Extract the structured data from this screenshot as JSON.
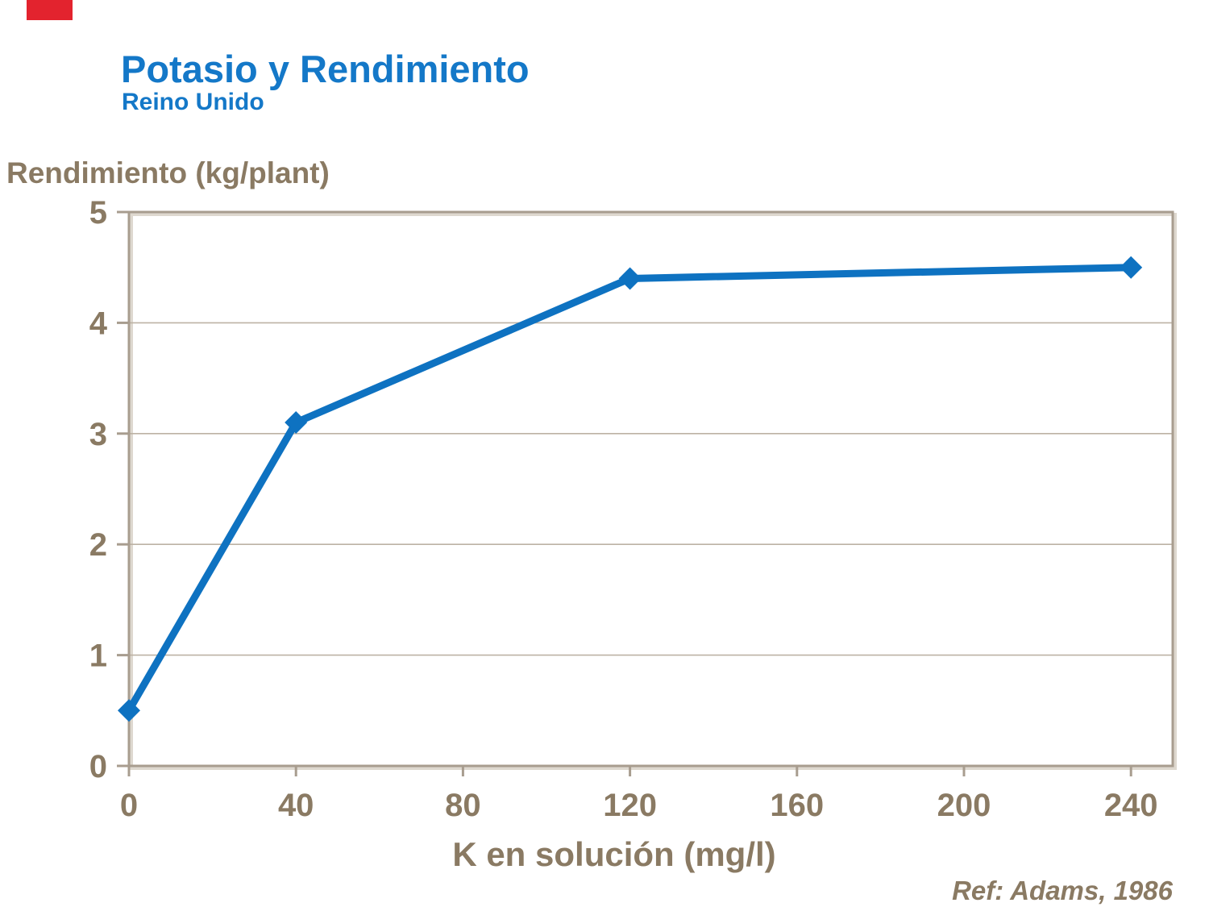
{
  "colors": {
    "background": "#ffffff",
    "title_blue": "#1478c8",
    "line_blue": "#0e72c1",
    "label_tan": "#8a7a63",
    "axis_tan": "#a89d8f",
    "axis_highlight": "#ded8cf",
    "grid_tan": "#bcb2a4",
    "logo_red": "#e3232e"
  },
  "header": {
    "title": "Potasio y Rendimiento",
    "subtitle": "Reino Unido"
  },
  "footer": {
    "ref": "Ref: Adams, 1986"
  },
  "chart_data": {
    "type": "line",
    "title": "Potasio y Rendimiento",
    "subtitle": "Reino Unido",
    "xlabel": "K en solución (mg/l)",
    "ylabel": "Rendimiento (kg/plant)",
    "series": [
      {
        "name": "Rendimiento (kg/plant)",
        "x": [
          0,
          40,
          120,
          240
        ],
        "y": [
          0.5,
          3.1,
          4.4,
          4.5
        ]
      }
    ],
    "xlim": [
      0,
      250
    ],
    "ylim": [
      0,
      5
    ],
    "x_ticks": [
      0,
      40,
      80,
      120,
      160,
      200,
      240
    ],
    "y_ticks": [
      0,
      1,
      2,
      3,
      4,
      5
    ],
    "grid": "horizontal interior gridlines only",
    "legend": "none",
    "marker": "diamond",
    "annotation": "Ref: Adams, 1986"
  }
}
